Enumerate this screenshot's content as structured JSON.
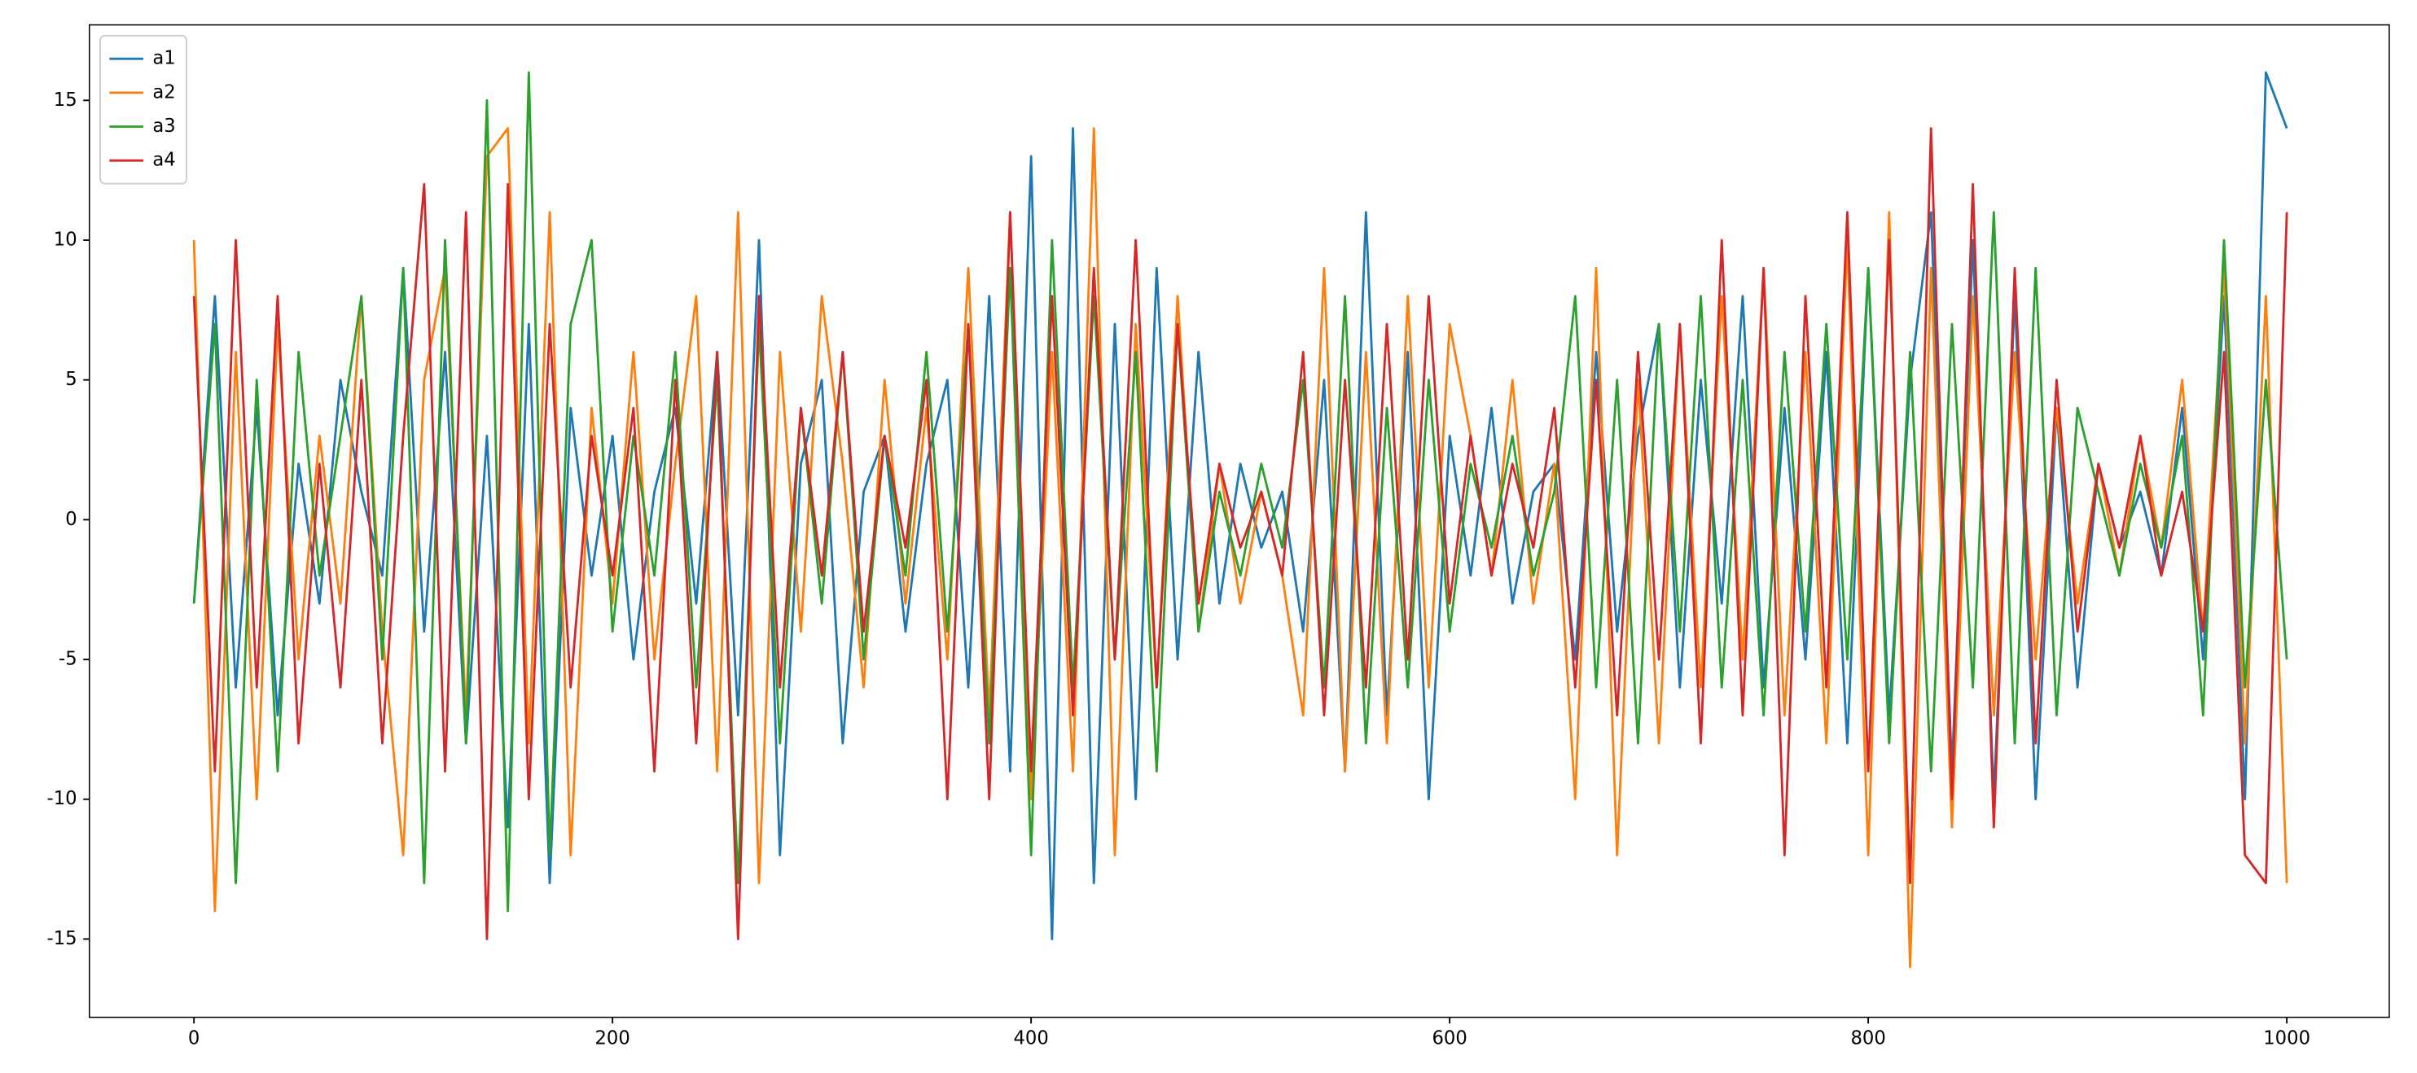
{
  "chart_data": {
    "type": "line",
    "x": [
      0,
      10,
      20,
      30,
      40,
      50,
      60,
      70,
      80,
      90,
      100,
      110,
      120,
      130,
      140,
      150,
      160,
      170,
      180,
      190,
      200,
      210,
      220,
      230,
      240,
      250,
      260,
      270,
      280,
      290,
      300,
      310,
      320,
      330,
      340,
      350,
      360,
      370,
      380,
      390,
      400,
      410,
      420,
      430,
      440,
      450,
      460,
      470,
      480,
      490,
      500,
      510,
      520,
      530,
      540,
      550,
      560,
      570,
      580,
      590,
      600,
      610,
      620,
      630,
      640,
      650,
      660,
      670,
      680,
      690,
      700,
      710,
      720,
      730,
      740,
      750,
      760,
      770,
      780,
      790,
      800,
      810,
      820,
      830,
      840,
      850,
      860,
      870,
      880,
      890,
      900,
      910,
      920,
      930,
      940,
      950,
      960,
      970,
      980,
      990,
      1000
    ],
    "series": [
      {
        "name": "a1",
        "color": "#1f77b4",
        "values": [
          -3,
          8,
          -6,
          4,
          -7,
          2,
          -3,
          5,
          1,
          -2,
          9,
          -4,
          6,
          -8,
          3,
          -11,
          7,
          -13,
          4,
          -2,
          3,
          -5,
          1,
          4,
          -3,
          6,
          -7,
          10,
          -12,
          2,
          5,
          -8,
          1,
          3,
          -4,
          2,
          5,
          -6,
          8,
          -9,
          13,
          -15,
          14,
          -13,
          7,
          -10,
          9,
          -5,
          6,
          -3,
          2,
          -1,
          1,
          -4,
          5,
          -9,
          11,
          -7,
          6,
          -10,
          3,
          -2,
          4,
          -3,
          1,
          2,
          -5,
          6,
          -4,
          3,
          7,
          -6,
          5,
          -3,
          8,
          -6,
          4,
          -5,
          6,
          -8,
          9,
          -7,
          5,
          11,
          -9,
          10,
          -10,
          8,
          -10,
          4,
          -6,
          2,
          -1,
          1,
          -2,
          4,
          -5,
          8,
          -10,
          16,
          14
        ]
      },
      {
        "name": "a2",
        "color": "#ff7f0e",
        "values": [
          10,
          -14,
          6,
          -10,
          7,
          -5,
          3,
          -3,
          8,
          -4,
          -12,
          5,
          9,
          -7,
          13,
          14,
          -8,
          11,
          -12,
          4,
          -3,
          6,
          -5,
          2,
          8,
          -9,
          11,
          -13,
          6,
          -4,
          8,
          2,
          -6,
          5,
          -3,
          4,
          -5,
          9,
          -7,
          11,
          -10,
          6,
          -9,
          14,
          -12,
          7,
          -6,
          8,
          -4,
          2,
          -3,
          1,
          -2,
          -7,
          9,
          -9,
          6,
          -8,
          8,
          -6,
          7,
          3,
          -2,
          5,
          -3,
          2,
          -10,
          9,
          -12,
          5,
          -8,
          7,
          -6,
          8,
          -5,
          9,
          -7,
          6,
          -8,
          10,
          -12,
          11,
          -16,
          9,
          -11,
          8,
          -7,
          6,
          -5,
          4,
          -3,
          2,
          -2,
          3,
          -1,
          5,
          -4,
          9,
          -8,
          8,
          -13
        ]
      },
      {
        "name": "a3",
        "color": "#2ca02c",
        "values": [
          -3,
          7,
          -13,
          5,
          -9,
          6,
          -2,
          3,
          8,
          -5,
          9,
          -13,
          10,
          -8,
          15,
          -14,
          16,
          -12,
          7,
          10,
          -4,
          3,
          -2,
          6,
          -6,
          5,
          -13,
          7,
          -8,
          4,
          -3,
          6,
          -5,
          3,
          -2,
          6,
          -4,
          7,
          -8,
          9,
          -12,
          10,
          -6,
          8,
          -5,
          6,
          -9,
          7,
          -4,
          1,
          -2,
          2,
          -1,
          5,
          -6,
          8,
          -8,
          4,
          -6,
          5,
          -4,
          2,
          -1,
          3,
          -2,
          1,
          8,
          -6,
          5,
          -8,
          7,
          -4,
          8,
          -6,
          5,
          -7,
          6,
          -4,
          7,
          -5,
          9,
          -8,
          6,
          -9,
          7,
          -6,
          11,
          -8,
          9,
          -7,
          4,
          1,
          -2,
          2,
          -1,
          3,
          -7,
          10,
          -6,
          5,
          -5
        ]
      },
      {
        "name": "a4",
        "color": "#d62728",
        "values": [
          8,
          -9,
          10,
          -6,
          8,
          -8,
          2,
          -6,
          5,
          -8,
          3,
          12,
          -9,
          11,
          -15,
          12,
          -10,
          7,
          -6,
          3,
          -2,
          4,
          -9,
          5,
          -8,
          6,
          -15,
          8,
          -6,
          4,
          -2,
          6,
          -4,
          3,
          -1,
          5,
          -10,
          7,
          -10,
          11,
          -9,
          8,
          -7,
          9,
          -5,
          10,
          -6,
          7,
          -3,
          2,
          -1,
          1,
          -2,
          6,
          -7,
          5,
          -6,
          7,
          -5,
          8,
          -3,
          3,
          -2,
          2,
          -1,
          4,
          -6,
          5,
          -7,
          6,
          -5,
          7,
          -8,
          10,
          -7,
          9,
          -12,
          8,
          -6,
          11,
          -9,
          10,
          -13,
          14,
          -10,
          12,
          -11,
          9,
          -8,
          5,
          -4,
          2,
          -1,
          3,
          -2,
          1,
          -4,
          6,
          -12,
          -13,
          11
        ]
      }
    ],
    "xlim": [
      -49.95,
      1048.95
    ],
    "ylim": [
      -17.8,
      17.7
    ],
    "xticks": [
      0,
      200,
      400,
      600,
      800,
      1000
    ],
    "yticks": [
      -15,
      -10,
      -5,
      0,
      5,
      10,
      15
    ],
    "legend": "upper left"
  }
}
